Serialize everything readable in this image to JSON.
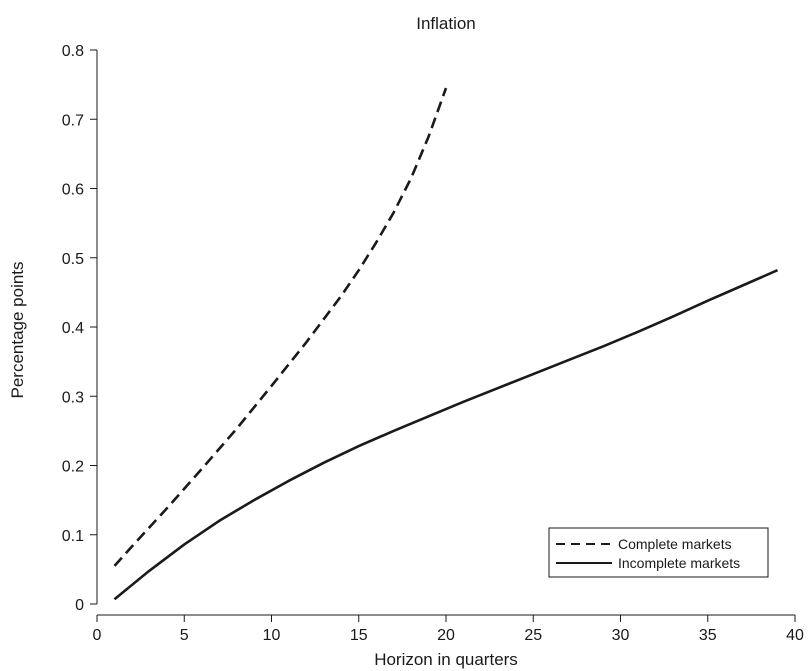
{
  "chart_data": {
    "type": "line",
    "title": "Inflation",
    "xlabel": "Horizon in quarters",
    "ylabel": "Percentage points",
    "xlim": [
      0,
      40
    ],
    "ylim": [
      0,
      0.8
    ],
    "xticks": [
      0,
      5,
      10,
      15,
      20,
      25,
      30,
      35,
      40
    ],
    "yticks": [
      0,
      0.1,
      0.2,
      0.3,
      0.4,
      0.5,
      0.6,
      0.7,
      0.8
    ],
    "xtick_labels": [
      "0",
      "5",
      "10",
      "15",
      "20",
      "25",
      "30",
      "35",
      "40"
    ],
    "ytick_labels": [
      "0",
      "0.1",
      "0.2",
      "0.3",
      "0.4",
      "0.5",
      "0.6",
      "0.7",
      "0.8"
    ],
    "grid": false,
    "legend_position": "bottom-right",
    "series": [
      {
        "name": "Complete markets",
        "style": "dashed",
        "color": "#1a1a1a",
        "x": [
          1,
          2,
          4,
          6,
          8,
          10,
          12,
          14,
          15,
          16,
          17,
          18,
          19,
          20
        ],
        "y": [
          0.055,
          0.083,
          0.138,
          0.195,
          0.253,
          0.315,
          0.378,
          0.445,
          0.482,
          0.522,
          0.565,
          0.615,
          0.675,
          0.745
        ]
      },
      {
        "name": "Incomplete markets",
        "style": "solid",
        "color": "#1a1a1a",
        "x": [
          1,
          3,
          5,
          7,
          9,
          11,
          13,
          15,
          17,
          19,
          21,
          23,
          25,
          27,
          29,
          31,
          33,
          35,
          37,
          39
        ],
        "y": [
          0.007,
          0.048,
          0.086,
          0.12,
          0.15,
          0.178,
          0.204,
          0.228,
          0.25,
          0.271,
          0.292,
          0.312,
          0.332,
          0.352,
          0.372,
          0.393,
          0.415,
          0.438,
          0.46,
          0.482
        ]
      }
    ]
  }
}
